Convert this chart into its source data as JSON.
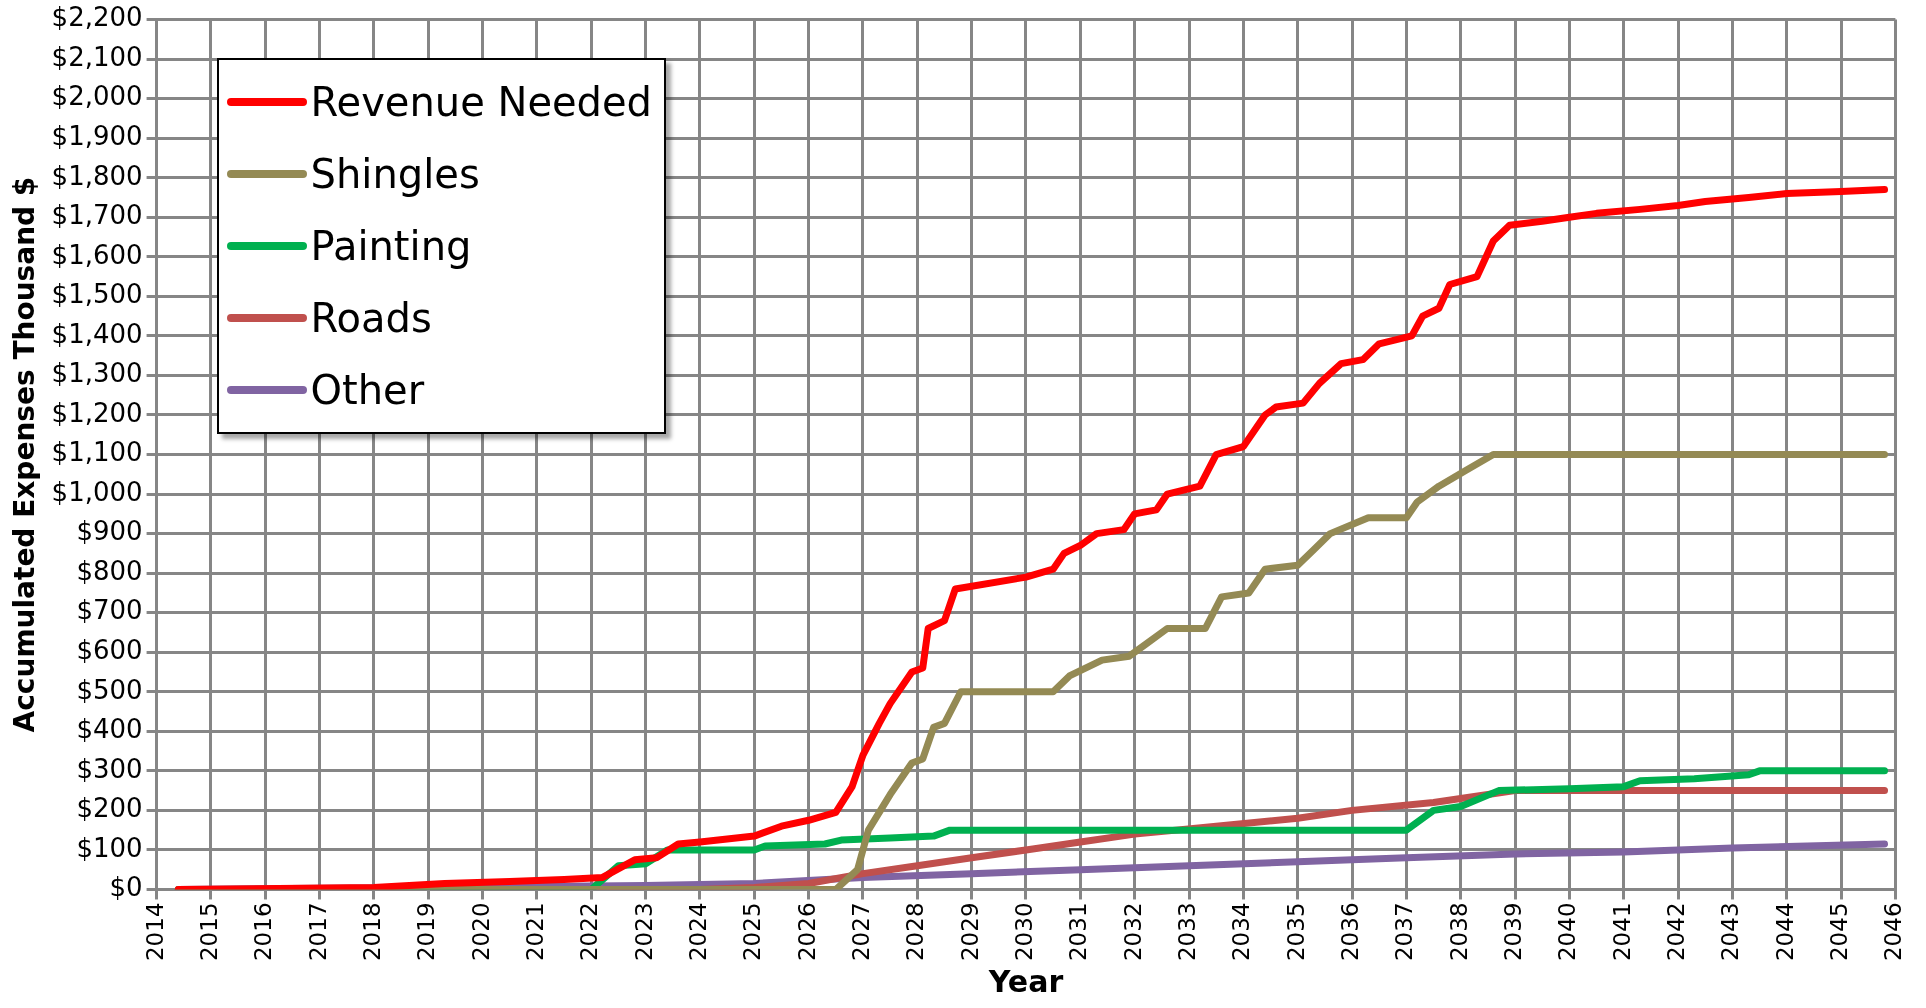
{
  "chart_data": {
    "type": "line",
    "xlabel": "Year",
    "ylabel": "Accumulated Expenses Thousand $",
    "xlim": [
      2014,
      2046
    ],
    "xticks": [
      2014,
      2015,
      2016,
      2017,
      2018,
      2019,
      2020,
      2021,
      2022,
      2023,
      2024,
      2025,
      2026,
      2027,
      2028,
      2029,
      2030,
      2031,
      2032,
      2033,
      2034,
      2035,
      2036,
      2037,
      2038,
      2039,
      2040,
      2041,
      2042,
      2043,
      2044,
      2045,
      2046
    ],
    "ylim": [
      0,
      2200
    ],
    "yticks": [
      {
        "value": 0,
        "label": "$0"
      },
      {
        "value": 100,
        "label": "$100"
      },
      {
        "value": 200,
        "label": "$200"
      },
      {
        "value": 300,
        "label": "$300"
      },
      {
        "value": 400,
        "label": "$400"
      },
      {
        "value": 500,
        "label": "$500"
      },
      {
        "value": 600,
        "label": "$600"
      },
      {
        "value": 700,
        "label": "$700"
      },
      {
        "value": 800,
        "label": "$800"
      },
      {
        "value": 900,
        "label": "$900"
      },
      {
        "value": 1000,
        "label": "$1,000"
      },
      {
        "value": 1100,
        "label": "$1,100"
      },
      {
        "value": 1200,
        "label": "$1,200"
      },
      {
        "value": 1300,
        "label": "$1,300"
      },
      {
        "value": 1400,
        "label": "$1,400"
      },
      {
        "value": 1500,
        "label": "$1,500"
      },
      {
        "value": 1600,
        "label": "$1,600"
      },
      {
        "value": 1700,
        "label": "$1,700"
      },
      {
        "value": 1800,
        "label": "$1,800"
      },
      {
        "value": 1900,
        "label": "$1,900"
      },
      {
        "value": 2000,
        "label": "$2,000"
      },
      {
        "value": 2100,
        "label": "$2,100"
      },
      {
        "value": 2200,
        "label": "$2,200"
      }
    ],
    "grid": true,
    "legend": "top left",
    "marker": "none",
    "line_style": "solid",
    "series": [
      {
        "name": "Revenue Needed",
        "color": "#ff0000",
        "x": [
          2014.4,
          2018,
          2019.3,
          2020.5,
          2021.5,
          2022.2,
          2022.8,
          2023.2,
          2023.6,
          2024,
          2025,
          2025.5,
          2026,
          2026.5,
          2026.8,
          2027,
          2027.3,
          2027.5,
          2027.9,
          2028.1,
          2028.2,
          2028.5,
          2028.7,
          2030,
          2030.5,
          2030.7,
          2031,
          2031.3,
          2031.8,
          2032,
          2032.4,
          2032.6,
          2033.2,
          2033.5,
          2034,
          2034.4,
          2034.6,
          2035.1,
          2035.4,
          2035.8,
          2036.2,
          2036.5,
          2037.1,
          2037.3,
          2037.6,
          2037.8,
          2038.3,
          2038.4,
          2038.6,
          2038.9,
          2039.5,
          2040,
          2040.5,
          2041.3,
          2042,
          2042.5,
          2043.3,
          2044,
          2045,
          2045.8
        ],
        "values": [
          0,
          5,
          15,
          20,
          25,
          30,
          75,
          80,
          115,
          120,
          135,
          160,
          175,
          195,
          260,
          340,
          420,
          470,
          550,
          560,
          660,
          680,
          760,
          790,
          810,
          850,
          870,
          900,
          910,
          950,
          960,
          1000,
          1020,
          1100,
          1120,
          1200,
          1220,
          1230,
          1280,
          1330,
          1340,
          1380,
          1400,
          1450,
          1470,
          1530,
          1550,
          1580,
          1640,
          1680,
          1690,
          1700,
          1710,
          1720,
          1730,
          1740,
          1750,
          1760,
          1765,
          1770
        ]
      },
      {
        "name": "Shingles",
        "color": "#948a54",
        "x": [
          2014.4,
          2026.5,
          2026.9,
          2027.1,
          2027.5,
          2027.9,
          2028.1,
          2028.3,
          2028.5,
          2028.8,
          2030.5,
          2030.8,
          2031.4,
          2031.9,
          2032.2,
          2032.6,
          2033.3,
          2033.6,
          2034.1,
          2034.4,
          2035,
          2035.3,
          2035.6,
          2036.3,
          2037,
          2037.2,
          2037.6,
          2038.1,
          2038.6,
          2045.8
        ],
        "values": [
          0,
          0,
          50,
          150,
          240,
          320,
          330,
          410,
          420,
          500,
          500,
          540,
          580,
          590,
          620,
          660,
          660,
          740,
          750,
          810,
          820,
          860,
          900,
          940,
          940,
          980,
          1020,
          1060,
          1100,
          1100
        ]
      },
      {
        "name": "Painting",
        "color": "#00b050",
        "x": [
          2014.4,
          2022,
          2022.5,
          2023,
          2023.4,
          2025,
          2025.2,
          2026.3,
          2026.6,
          2027.5,
          2028.3,
          2028.6,
          2037,
          2037.5,
          2038,
          2038.7,
          2040,
          2041,
          2041.3,
          2042.3,
          2043.3,
          2043.5,
          2045.8
        ],
        "values": [
          0,
          0,
          60,
          65,
          100,
          100,
          110,
          115,
          125,
          130,
          135,
          150,
          150,
          200,
          210,
          250,
          255,
          260,
          275,
          280,
          290,
          300,
          300
        ]
      },
      {
        "name": "Roads",
        "color": "#c0504d",
        "x": [
          2014.4,
          2024,
          2025,
          2026,
          2027,
          2028,
          2029,
          2030,
          2031,
          2032,
          2033.5,
          2035,
          2036,
          2037.5,
          2038.5,
          2039,
          2045.8
        ],
        "values": [
          0,
          0,
          5,
          15,
          40,
          60,
          80,
          100,
          120,
          140,
          160,
          180,
          200,
          220,
          240,
          250,
          250
        ]
      },
      {
        "name": "Other",
        "color": "#8064a2",
        "x": [
          2014.4,
          2019,
          2023,
          2025,
          2027,
          2029,
          2031,
          2033,
          2035,
          2037,
          2039,
          2041,
          2043,
          2045.8
        ],
        "values": [
          0,
          5,
          10,
          15,
          30,
          40,
          50,
          60,
          70,
          80,
          90,
          95,
          105,
          115
        ]
      }
    ]
  }
}
